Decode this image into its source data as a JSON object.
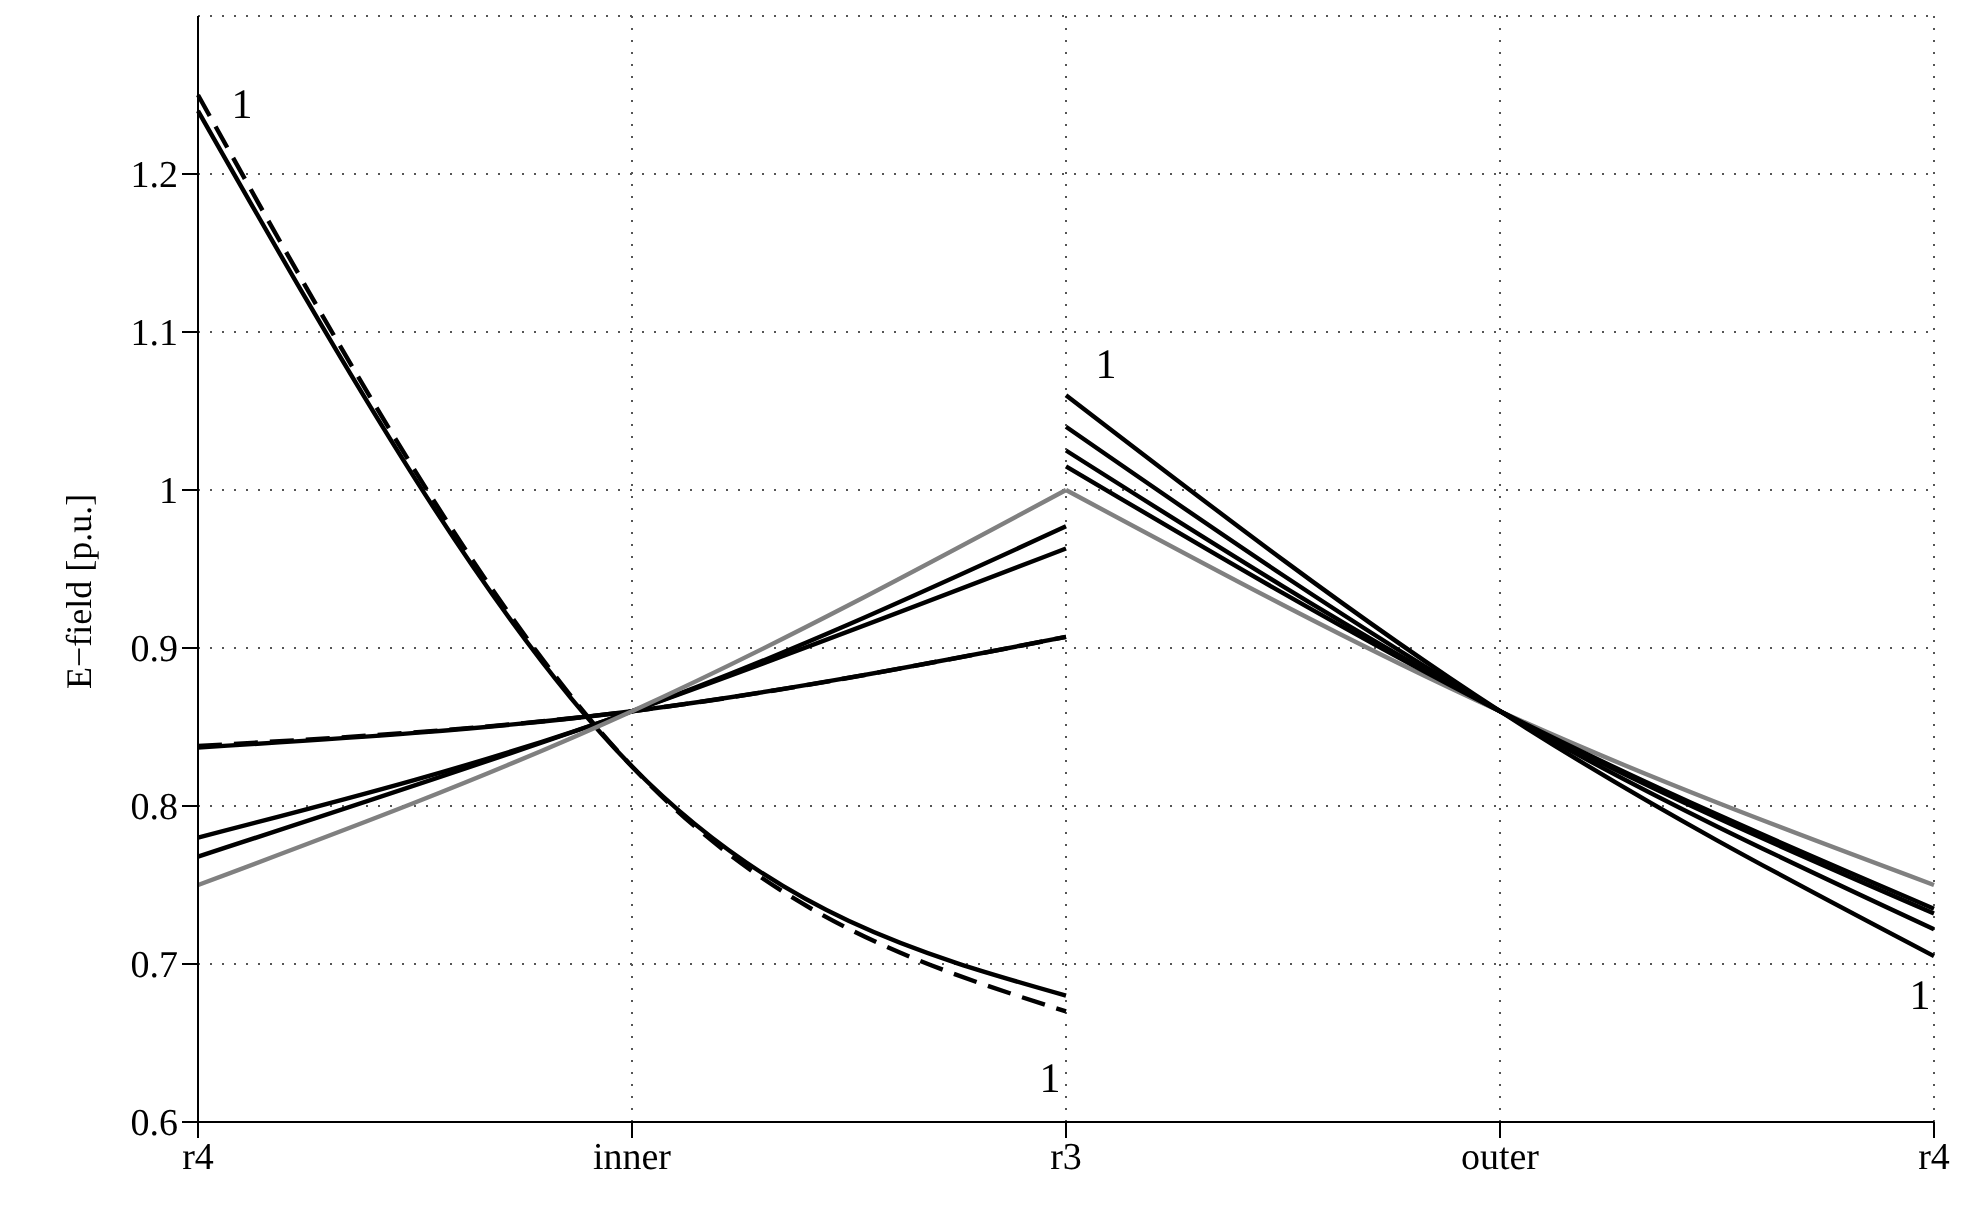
{
  "chart_data": {
    "type": "line",
    "ylabel": "E−field [p.u.]",
    "categories": [
      "r4",
      "inner",
      "r3",
      "outer",
      "r4"
    ],
    "ylim": [
      0.6,
      1.3
    ],
    "yticks": [
      0.6,
      0.7,
      0.8,
      0.9,
      1,
      1.1,
      1.2
    ],
    "grid": true,
    "line_style": "solid",
    "series": [
      {
        "color": "#000000",
        "values": [
          1.24,
          0.825,
          0.68,
          null,
          null
        ]
      },
      {
        "color": "#000000",
        "line_style": "dashed",
        "values": [
          1.25,
          0.825,
          0.67,
          null,
          null
        ]
      },
      {
        "color": "#000000",
        "values": [
          0.837,
          0.86,
          0.907,
          null,
          null
        ]
      },
      {
        "color": "#000000",
        "line_style": "dashed",
        "values": [
          0.838,
          0.86,
          0.907,
          null,
          null
        ]
      },
      {
        "color": "#000000",
        "values": [
          0.78,
          0.86,
          0.977,
          null,
          null
        ]
      },
      {
        "color": "#000000",
        "values": [
          0.768,
          0.86,
          0.963,
          null,
          null
        ]
      },
      {
        "color": "#808080",
        "values": [
          0.75,
          0.86,
          1,
          null,
          null
        ]
      },
      {
        "color": "#808080",
        "values": [
          null,
          null,
          1,
          0.86,
          0.75
        ]
      },
      {
        "color": "#000000",
        "values": [
          null,
          null,
          1.06,
          0.86,
          0.705
        ]
      },
      {
        "color": "#000000",
        "values": [
          null,
          null,
          1.04,
          0.86,
          0.722
        ]
      },
      {
        "color": "#000000",
        "values": [
          null,
          null,
          1.025,
          0.86,
          0.732
        ]
      },
      {
        "color": "#000000",
        "values": [
          null,
          null,
          1.015,
          0.86,
          0.735
        ]
      }
    ],
    "annotations": [
      "1",
      "1",
      "1",
      "1"
    ]
  }
}
